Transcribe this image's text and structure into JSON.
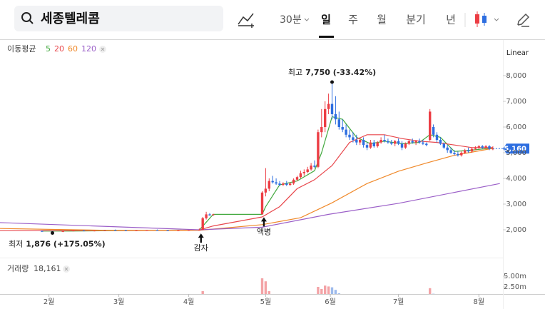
{
  "toolbar": {
    "search": "세종텔레콤",
    "interval": "30분",
    "periods": [
      "일",
      "주",
      "월",
      "분기",
      "년"
    ]
  },
  "chart_data": {
    "type": "candlestick",
    "scale": "Linear",
    "ma_legend_title": "이동평균",
    "volume_title": "거래량",
    "volume_label": "18,161",
    "up_color": "#ec3d44",
    "down_color": "#2d6ee0",
    "volume_up_color": "#f3a3a6",
    "volume_down_color": "#9dbbec",
    "xlim": [
      0,
      144
    ],
    "xticks": [
      {
        "value": 14,
        "label": "2월"
      },
      {
        "value": 34,
        "label": "3월"
      },
      {
        "value": 54,
        "label": "4월"
      },
      {
        "value": 76,
        "label": "5월"
      },
      {
        "value": 94.5,
        "label": "6월"
      },
      {
        "value": 114,
        "label": "7월"
      },
      {
        "value": 137,
        "label": "8월"
      }
    ],
    "ylim": [
      1000,
      9400
    ],
    "yticks": [
      {
        "value": 2000,
        "label": "2,000"
      },
      {
        "value": 3000,
        "label": "3,000"
      },
      {
        "value": 4000,
        "label": "4,000"
      },
      {
        "value": 5000,
        "label": "5,000"
      },
      {
        "value": 6000,
        "label": "6,000"
      },
      {
        "value": 7000,
        "label": "7,000"
      },
      {
        "value": 8000,
        "label": "8,000"
      }
    ],
    "volume_ylim": [
      0,
      7500000
    ],
    "volume_yticks": [
      {
        "value": 2500000,
        "label": "2.50m"
      },
      {
        "value": 5000000,
        "label": "5.00m"
      }
    ],
    "last_price": {
      "value": 5160,
      "label": "5,160"
    },
    "high_marker": {
      "x": 95,
      "value": 7750,
      "label": "최고",
      "value_label": "7,750 (-33.42%)"
    },
    "low_marker": {
      "x": 15,
      "value": 1876,
      "label": "최저",
      "value_label": "1,876 (+175.05%)"
    },
    "events": [
      {
        "x": 57.5,
        "label": "감자"
      },
      {
        "x": 75.5,
        "label": "액병"
      }
    ],
    "candles": {
      "x": [
        12,
        15,
        18,
        21,
        24,
        27,
        30,
        33,
        36,
        39,
        42,
        45,
        48,
        51,
        54,
        57,
        58,
        59,
        60,
        61,
        75,
        76,
        77,
        78,
        79,
        80,
        81,
        82,
        83,
        84,
        85,
        86,
        87,
        88,
        89,
        90,
        91,
        92,
        93,
        94,
        95,
        96,
        97,
        98,
        99,
        100,
        101,
        102,
        103,
        104,
        105,
        106,
        107,
        108,
        109,
        110,
        111,
        112,
        113,
        114,
        115,
        116,
        117,
        118,
        119,
        120,
        121,
        122,
        123,
        124,
        125,
        126,
        127,
        128,
        129,
        130,
        131,
        132,
        133,
        134,
        135,
        136,
        137,
        138,
        139,
        140,
        141
      ],
      "open": [
        1950,
        1940,
        1920,
        1950,
        1970,
        1960,
        1970,
        1990,
        1980,
        1970,
        1980,
        1990,
        1980,
        1970,
        1980,
        1990,
        2000,
        2450,
        2600,
        2570,
        2600,
        3450,
        3600,
        3900,
        3850,
        3800,
        3750,
        3800,
        3750,
        3800,
        3950,
        4050,
        4200,
        4250,
        4350,
        4500,
        4450,
        5800,
        6000,
        6700,
        6900,
        6500,
        6300,
        6000,
        5900,
        5700,
        5600,
        5500,
        5400,
        5500,
        5300,
        5200,
        5400,
        5250,
        5400,
        5500,
        5450,
        5400,
        5350,
        5450,
        5350,
        5200,
        5350,
        5450,
        5400,
        5450,
        5400,
        5350,
        5500,
        6000,
        5700,
        5500,
        5350,
        5200,
        5100,
        5000,
        4950,
        4900,
        5000,
        5100,
        5050,
        5150,
        5200,
        5250,
        5200,
        5250,
        5150
      ],
      "high": [
        1970,
        1950,
        1960,
        1990,
        1990,
        1980,
        2000,
        2010,
        2000,
        1990,
        2000,
        2010,
        2000,
        1990,
        2000,
        2050,
        2500,
        2700,
        2650,
        2620,
        3500,
        4400,
        4000,
        4100,
        4000,
        3900,
        3850,
        3900,
        3850,
        4000,
        4100,
        4300,
        4350,
        4450,
        4600,
        4700,
        5900,
        6700,
        7000,
        7300,
        7750,
        7200,
        6600,
        6300,
        6100,
        5900,
        5800,
        5700,
        5600,
        5600,
        5400,
        5500,
        5500,
        5450,
        5600,
        5700,
        5550,
        5500,
        5500,
        5550,
        5450,
        5400,
        5500,
        5550,
        5500,
        5550,
        5500,
        5400,
        6700,
        6100,
        5800,
        5600,
        5400,
        5300,
        5200,
        5100,
        5050,
        5050,
        5150,
        5200,
        5200,
        5250,
        5300,
        5300,
        5300,
        5300,
        5250
      ],
      "low": [
        1930,
        1876,
        1910,
        1940,
        1950,
        1940,
        1960,
        1970,
        1960,
        1950,
        1970,
        1970,
        1960,
        1950,
        1960,
        1970,
        1990,
        2400,
        2550,
        2540,
        2600,
        3300,
        3500,
        3800,
        3750,
        3700,
        3700,
        3700,
        3700,
        3750,
        3900,
        4000,
        4100,
        4200,
        4300,
        4400,
        4400,
        5600,
        5800,
        6500,
        6300,
        6100,
        5900,
        5800,
        5600,
        5500,
        5400,
        5300,
        5300,
        5200,
        5100,
        5150,
        5200,
        5200,
        5350,
        5400,
        5350,
        5300,
        5250,
        5300,
        5100,
        5150,
        5300,
        5350,
        5300,
        5350,
        5300,
        5250,
        5450,
        5600,
        5400,
        5300,
        5150,
        5000,
        4950,
        4900,
        4850,
        4850,
        4950,
        5000,
        5000,
        5100,
        5150,
        5150,
        5150,
        5100,
        5100
      ],
      "close": [
        1940,
        1920,
        1950,
        1970,
        1960,
        1970,
        1990,
        1980,
        1970,
        1980,
        1990,
        1980,
        1970,
        1980,
        1990,
        2000,
        2450,
        2600,
        2560,
        2600,
        3450,
        3600,
        3900,
        3850,
        3800,
        3750,
        3800,
        3750,
        3800,
        3950,
        4050,
        4200,
        4250,
        4350,
        4500,
        4450,
        5800,
        6000,
        6700,
        6900,
        6500,
        6300,
        6000,
        5900,
        5700,
        5600,
        5500,
        5400,
        5500,
        5300,
        5200,
        5400,
        5250,
        5400,
        5500,
        5450,
        5400,
        5350,
        5450,
        5350,
        5200,
        5350,
        5450,
        5400,
        5450,
        5400,
        5350,
        5300,
        6600,
        5700,
        5500,
        5350,
        5200,
        5100,
        5000,
        4950,
        4900,
        5000,
        5100,
        5050,
        5150,
        5200,
        5250,
        5200,
        5250,
        5150,
        5160
      ],
      "volume": [
        30000,
        60000,
        30000,
        30000,
        30000,
        30000,
        30000,
        30000,
        30000,
        30000,
        30000,
        30000,
        30000,
        30000,
        30000,
        40000,
        1500000,
        600000,
        400000,
        300000,
        4500000,
        3800000,
        1500000,
        800000,
        500000,
        400000,
        350000,
        300000,
        350000,
        450000,
        500000,
        600000,
        500000,
        550000,
        700000,
        600000,
        2500000,
        2000000,
        2800000,
        2600000,
        2400000,
        1800000,
        1000000,
        700000,
        500000,
        450000,
        400000,
        500000,
        350000,
        450000,
        400000,
        500000,
        350000,
        300000,
        400000,
        350000,
        300000,
        300000,
        350000,
        300000,
        450000,
        350000,
        300000,
        300000,
        250000,
        300000,
        250000,
        250000,
        2200000,
        900000,
        600000,
        450000,
        400000,
        350000,
        450000,
        400000,
        350000,
        300000,
        300000,
        250000,
        250000,
        200000,
        200000,
        150000,
        150000,
        100000,
        18161
      ]
    },
    "moving_averages": [
      {
        "name": "5",
        "color": "#43a93f",
        "x": [
          12,
          20,
          40,
          57,
          61,
          75,
          76,
          80,
          85,
          90,
          92,
          95,
          98,
          102,
          106,
          110,
          115,
          120,
          123,
          126,
          130,
          135,
          141
        ],
        "values": [
          1950,
          1950,
          1975,
          1990,
          2600,
          2600,
          2900,
          3750,
          3900,
          4300,
          5000,
          6400,
          6300,
          5600,
          5350,
          5450,
          5350,
          5400,
          5700,
          5600,
          5050,
          5100,
          5190
        ]
      },
      {
        "name": "20",
        "color": "#e8474c",
        "x": [
          0,
          40,
          57,
          61,
          75,
          80,
          85,
          90,
          95,
          100,
          105,
          110,
          115,
          120,
          125,
          130,
          135,
          141
        ],
        "values": [
          1970,
          1970,
          1990,
          2150,
          2500,
          2900,
          3600,
          3950,
          4500,
          5400,
          5700,
          5700,
          5550,
          5450,
          5400,
          5300,
          5200,
          5200
        ]
      },
      {
        "name": "60",
        "color": "#f0892a",
        "x": [
          0,
          30,
          57,
          75,
          86,
          95,
          105,
          114,
          122,
          130,
          141
        ],
        "values": [
          2050,
          1980,
          1980,
          2200,
          2470,
          3050,
          3800,
          4280,
          4600,
          4900,
          5170
        ]
      },
      {
        "name": "120",
        "color": "#9b5fc8",
        "x": [
          0,
          57,
          75,
          94,
          114,
          143
        ],
        "values": [
          2280,
          2000,
          2100,
          2600,
          3030,
          3800
        ]
      }
    ]
  }
}
